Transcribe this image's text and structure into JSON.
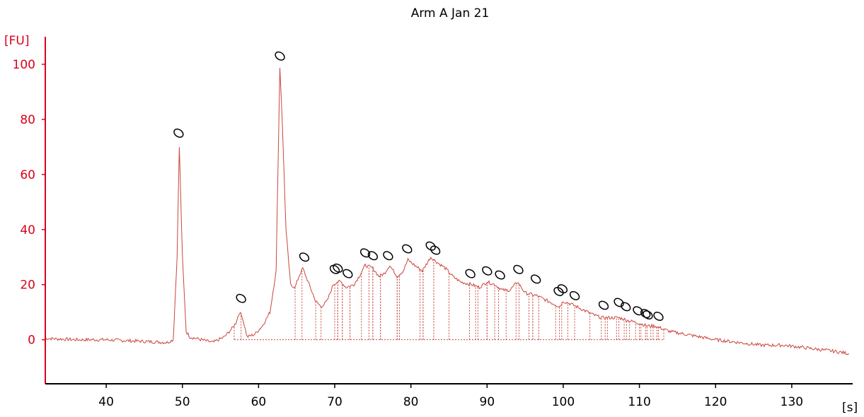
{
  "chart_data": {
    "type": "line",
    "title": "Arm A Jan 21",
    "xlabel": "[s]",
    "ylabel": "[FU]",
    "xlim": [
      32,
      138
    ],
    "ylim": [
      -16,
      110
    ],
    "x_ticks": [
      40,
      50,
      60,
      70,
      80,
      90,
      100,
      110,
      120,
      130
    ],
    "y_ticks": [
      0,
      20,
      40,
      60,
      80,
      100
    ],
    "grid": false,
    "colors": {
      "axis_y": "#d9001b",
      "trace": "#c8463c",
      "axis_x": "#000000",
      "marker": "#000000"
    },
    "series": [
      {
        "x": [
          32,
          36,
          40,
          44,
          48,
          48.8,
          49.3,
          49.6,
          50.0,
          50.5,
          51,
          54,
          55.5,
          56.5,
          57.0,
          57.5,
          57.9,
          58.5,
          59.5,
          60.5,
          61.5,
          62.3,
          62.8,
          63.1,
          63.6,
          64.2,
          64.8,
          65.3,
          65.8,
          66.5,
          67.5,
          68.2,
          69.0,
          69.8,
          70.3,
          70.8,
          71.5,
          72.5,
          73.2,
          74.0,
          75.0,
          75.8,
          76.5,
          77.2,
          78.2,
          79.0,
          79.6,
          80.5,
          81.5,
          82.6,
          83.5,
          84.5,
          85.5,
          86.5,
          88.0,
          89.0,
          90.0,
          91.0,
          92.0,
          93.0,
          94.0,
          95.0,
          96.5,
          98.0,
          99.5,
          100.0,
          101.0,
          102.5,
          104.0,
          105.0,
          106.0,
          107.3,
          108.5,
          110.0,
          111.0,
          112.0,
          113.0,
          114.0,
          116.0,
          118.0,
          120.0,
          123.0,
          126.0,
          129.0,
          132.0,
          135.0,
          137.5
        ],
        "y": [
          0.5,
          0,
          0,
          -0.5,
          -1,
          0,
          30,
          70,
          30,
          3,
          1,
          -1,
          1,
          4,
          6,
          10,
          8,
          1,
          2,
          5,
          10,
          25,
          99,
          80,
          40,
          20,
          19,
          23,
          26,
          21,
          14,
          12,
          14,
          20,
          21,
          21,
          19,
          20,
          23,
          27,
          26,
          23,
          24,
          27,
          23,
          25,
          29,
          27,
          25,
          30,
          28,
          26,
          23,
          21,
          20,
          19,
          21,
          20,
          18,
          18,
          21,
          17,
          16,
          14,
          12,
          14,
          13,
          11,
          9,
          8,
          8,
          8,
          7,
          6,
          5,
          5,
          4,
          3,
          2,
          1,
          0,
          -1,
          -2,
          -2,
          -3,
          -4,
          -5
        ]
      }
    ],
    "annotations": {
      "peak_marker_x": [
        49.5,
        57.7,
        62.8,
        66.0,
        70.0,
        70.4,
        71.7,
        74.0,
        75.0,
        77.0,
        79.5,
        82.6,
        83.2,
        87.8,
        90.0,
        91.7,
        94.1,
        96.4,
        99.4,
        99.9,
        101.5,
        105.3,
        107.3,
        108.2,
        109.8,
        110.8,
        111.1,
        112.5
      ],
      "peak_marker_y": [
        75,
        15,
        103,
        30,
        25.5,
        26,
        24,
        31.5,
        30.5,
        30.5,
        33,
        34,
        32.5,
        24,
        25,
        23.5,
        25.5,
        22,
        17.5,
        18.5,
        16,
        12.5,
        13.5,
        12,
        10.5,
        9.5,
        9,
        8.5
      ],
      "fraction_bins": [
        [
          56.8,
          57.7
        ],
        [
          64.8,
          65.7
        ],
        [
          67.5,
          68.2
        ],
        [
          70.0,
          70.4
        ],
        [
          70.4,
          71.0
        ],
        [
          71.0,
          72.0
        ],
        [
          72.0,
          73.5
        ],
        [
          74.5,
          75.0
        ],
        [
          75.0,
          76.0
        ],
        [
          76.0,
          78.2
        ],
        [
          78.2,
          78.5
        ],
        [
          81.2,
          81.6
        ],
        [
          81.6,
          83.0
        ],
        [
          83.0,
          85.0
        ],
        [
          87.7,
          88.5
        ],
        [
          88.8,
          90.0
        ],
        [
          90.0,
          91.0
        ],
        [
          91.5,
          92.5
        ],
        [
          93.8,
          94.2
        ],
        [
          95.5,
          96.0
        ],
        [
          96.0,
          96.8
        ],
        [
          99.0,
          99.5
        ],
        [
          99.8,
          100.6
        ],
        [
          101.5,
          103.5
        ],
        [
          105.0,
          105.5
        ],
        [
          105.8,
          107.0
        ],
        [
          107.3,
          108.0
        ],
        [
          108.3,
          108.7
        ],
        [
          109.5,
          110.0
        ],
        [
          110.2,
          110.8
        ],
        [
          111.0,
          111.5
        ],
        [
          111.8,
          112.3
        ],
        [
          112.5,
          113.2
        ]
      ]
    }
  }
}
